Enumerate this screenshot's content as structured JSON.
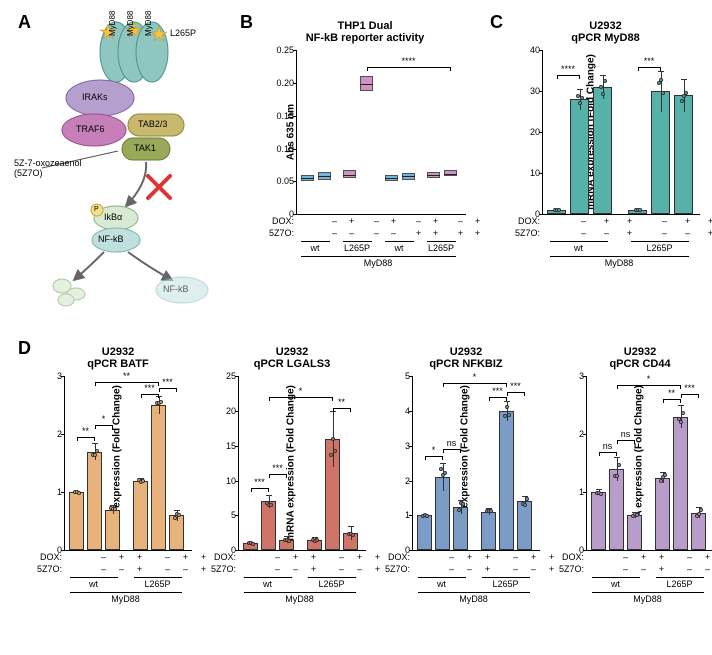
{
  "panelLabels": {
    "A": "A",
    "B": "B",
    "C": "C",
    "D": "D"
  },
  "diagram": {
    "myd88": "MyD88",
    "l265p": "L265P",
    "iraks": "IRAKs",
    "traf6": "TRAF6",
    "tab23": "TAB2/3",
    "tak1": "TAK1",
    "inhibitor_line1": "5Z-7-oxozeaenol",
    "inhibitor_line2": "(5Z7O)",
    "ikba": "IkBα",
    "nfkb": "NF-kB",
    "p": "P"
  },
  "panelB": {
    "title1": "THP1 Dual",
    "title2": "NF-kB reporter activity",
    "ylabel": "Abs 635 nm",
    "ylim": [
      0,
      0.25
    ],
    "yticks": [
      0.0,
      0.05,
      0.1,
      0.15,
      0.2,
      0.25
    ],
    "groups": [
      "wt",
      "L265P",
      "wt",
      "L265P"
    ],
    "super": "MyD88",
    "row1Label": "DOX:",
    "row2Label": "5Z7O:",
    "row1": [
      "–",
      "+",
      "–",
      "+",
      "–",
      "+",
      "–",
      "+"
    ],
    "row2": [
      "–",
      "–",
      "–",
      "–",
      "+",
      "+",
      "+",
      "+"
    ],
    "colors": [
      "#5aa8d6",
      "#5aa8d6",
      "#c77fb9",
      "#c77fb9",
      "#5aa8d6",
      "#5aa8d6",
      "#c77fb9",
      "#c77fb9"
    ],
    "median": [
      0.055,
      0.058,
      0.06,
      0.198,
      0.055,
      0.058,
      0.06,
      0.062
    ],
    "q1": [
      0.05,
      0.052,
      0.055,
      0.188,
      0.05,
      0.052,
      0.055,
      0.058
    ],
    "q3": [
      0.06,
      0.065,
      0.067,
      0.21,
      0.06,
      0.063,
      0.065,
      0.068
    ],
    "sig": {
      "label": "****",
      "from": 3,
      "to": 7,
      "y": 0.225
    }
  },
  "panelC": {
    "title1": "U2932",
    "title2": "qPCR MyD88",
    "ylabel": "mRNA expression (Fold Change)",
    "ylim": [
      0,
      40
    ],
    "yticks": [
      0,
      10,
      20,
      30,
      40
    ],
    "color": "#56b2a9",
    "values": [
      1.0,
      28,
      31,
      1.0,
      30,
      29
    ],
    "err": [
      0.2,
      2.5,
      3.0,
      0.2,
      5.0,
      4.0
    ],
    "row1Label": "DOX:",
    "row2Label": "5Z7O:",
    "row1": [
      "–",
      "+",
      "+",
      "–",
      "+",
      "+"
    ],
    "row2": [
      "–",
      "–",
      "+",
      "–",
      "–",
      "+"
    ],
    "groups": [
      "wt",
      "L265P"
    ],
    "super": "MyD88",
    "sigs": [
      {
        "label": "****",
        "from": 0,
        "to": 1,
        "y": 34
      },
      {
        "label": "***",
        "from": 3,
        "to": 4,
        "y": 36
      }
    ]
  },
  "panelD": {
    "common": {
      "row1Label": "DOX:",
      "row2Label": "5Z7O:",
      "row1": [
        "–",
        "+",
        "+",
        "–",
        "+",
        "+"
      ],
      "row2": [
        "–",
        "–",
        "+",
        "–",
        "–",
        "+"
      ],
      "groups": [
        "wt",
        "L265P"
      ],
      "super": "MyD88",
      "ylabel": "mRNA expression (Fold Change)"
    },
    "charts": [
      {
        "title1": "U2932",
        "title2": "qPCR BATF",
        "color": "#e7b37a",
        "ylim": [
          0,
          3
        ],
        "yticks": [
          0,
          1,
          2,
          3
        ],
        "values": [
          1.0,
          1.7,
          0.7,
          1.2,
          2.5,
          0.6
        ],
        "err": [
          0.02,
          0.15,
          0.08,
          0.05,
          0.15,
          0.1
        ],
        "sigs": [
          {
            "label": "**",
            "from": 0,
            "to": 1,
            "y": 1.95
          },
          {
            "label": "*",
            "from": 1,
            "to": 2,
            "y": 2.15
          },
          {
            "label": "**",
            "from": 1,
            "to": 4,
            "y": 2.9
          },
          {
            "label": "***",
            "from": 3,
            "to": 4,
            "y": 2.7
          },
          {
            "label": "***",
            "from": 4,
            "to": 5,
            "y": 2.8
          }
        ]
      },
      {
        "title1": "U2932",
        "title2": "qPCR LGALS3",
        "color": "#d07468",
        "ylim": [
          0,
          25
        ],
        "yticks": [
          0,
          5,
          10,
          15,
          20,
          25
        ],
        "values": [
          1.0,
          7.0,
          1.5,
          1.5,
          16.0,
          2.5
        ],
        "err": [
          0.2,
          1.0,
          0.5,
          0.4,
          4.0,
          1.0
        ],
        "sigs": [
          {
            "label": "***",
            "from": 0,
            "to": 1,
            "y": 9
          },
          {
            "label": "***",
            "from": 1,
            "to": 2,
            "y": 11
          },
          {
            "label": "*",
            "from": 1,
            "to": 4,
            "y": 22
          },
          {
            "label": "**",
            "from": 4,
            "to": 5,
            "y": 20.5
          }
        ]
      },
      {
        "title1": "U2932",
        "title2": "qPCR NFKBIZ",
        "color": "#7a9cc7",
        "ylim": [
          0,
          5
        ],
        "yticks": [
          0,
          1,
          2,
          3,
          4,
          5
        ],
        "values": [
          1.0,
          2.1,
          1.25,
          1.1,
          4.0,
          1.4
        ],
        "err": [
          0.05,
          0.4,
          0.2,
          0.1,
          0.3,
          0.15
        ],
        "sigs": [
          {
            "label": "*",
            "from": 0,
            "to": 1,
            "y": 2.7
          },
          {
            "label": "ns",
            "from": 1,
            "to": 2,
            "y": 2.9
          },
          {
            "label": "*",
            "from": 1,
            "to": 4,
            "y": 4.8
          },
          {
            "label": "***",
            "from": 3,
            "to": 4,
            "y": 4.4
          },
          {
            "label": "***",
            "from": 4,
            "to": 5,
            "y": 4.55
          }
        ]
      },
      {
        "title1": "U2932",
        "title2": "qPCR CD44",
        "color": "#b89cc9",
        "ylim": [
          0,
          3
        ],
        "yticks": [
          0,
          1,
          2,
          3
        ],
        "values": [
          1.0,
          1.4,
          0.6,
          1.25,
          2.3,
          0.65
        ],
        "err": [
          0.05,
          0.2,
          0.05,
          0.1,
          0.2,
          0.1
        ],
        "sigs": [
          {
            "label": "ns",
            "from": 0,
            "to": 1,
            "y": 1.7
          },
          {
            "label": "ns",
            "from": 1,
            "to": 2,
            "y": 1.9
          },
          {
            "label": "*",
            "from": 1,
            "to": 4,
            "y": 2.85
          },
          {
            "label": "**",
            "from": 3,
            "to": 4,
            "y": 2.6
          },
          {
            "label": "***",
            "from": 4,
            "to": 5,
            "y": 2.7
          }
        ]
      }
    ]
  }
}
